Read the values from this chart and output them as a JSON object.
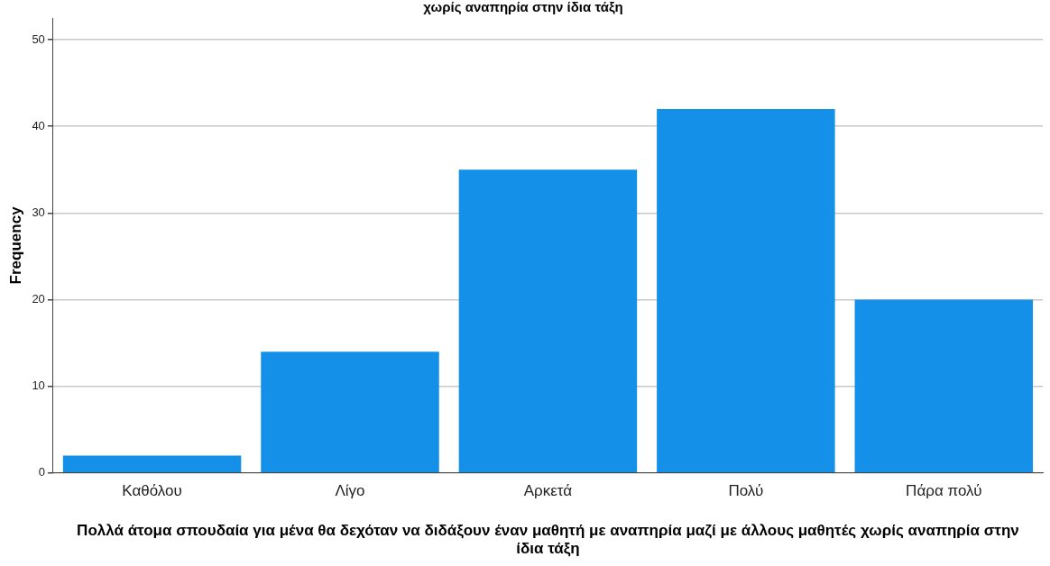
{
  "chart_data": {
    "type": "bar",
    "title": "χωρίς αναπηρία στην ίδια τάξη",
    "xlabel": "Πολλά άτομα σπουδαία για μένα θα δεχόταν να διδάξουν έναν μαθητή με αναπηρία μαζί με άλλους μαθητές χωρίς αναπηρία στην ίδια τάξη",
    "ylabel": "Frequency",
    "categories": [
      "Καθόλου",
      "Λίγο",
      "Αρκετά",
      "Πολύ",
      "Πάρα πολύ"
    ],
    "values": [
      2,
      14,
      35,
      42,
      20
    ],
    "color": "#1590e8",
    "ylim": [
      0,
      52.5
    ],
    "yticks": [
      0,
      10,
      20,
      30,
      40,
      50
    ],
    "grid": "y",
    "legend": false
  }
}
